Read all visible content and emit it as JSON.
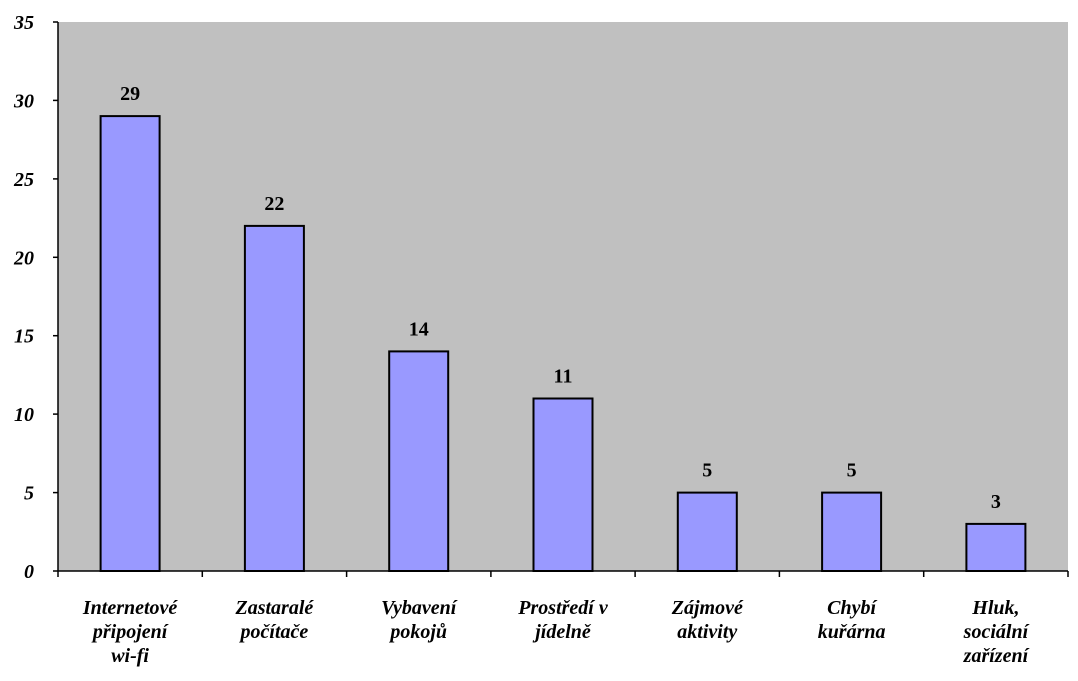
{
  "chart_data": {
    "type": "bar",
    "categories": [
      "Internetové připojení wi-fi",
      "Zastaralé počítače",
      "Vybavení pokojů",
      "Prostředí v jídelně",
      "Zájmové aktivity",
      "Chybí kuřárna",
      "Hluk, sociální zařízení"
    ],
    "category_lines": [
      [
        "Internetové",
        "připojení",
        "wi-fi"
      ],
      [
        "Zastaralé",
        "počítače"
      ],
      [
        "Vybavení",
        "pokojů"
      ],
      [
        "Prostředí v",
        "jídelně"
      ],
      [
        "Zájmové",
        "aktivity"
      ],
      [
        "Chybí",
        "kuřárna"
      ],
      [
        "Hluk,",
        "sociální",
        "zařízení"
      ]
    ],
    "values": [
      29,
      22,
      14,
      11,
      5,
      5,
      3
    ],
    "data_labels": [
      "29",
      "22",
      "14",
      "11",
      "5",
      "5",
      "3"
    ],
    "ylim": [
      0,
      35
    ],
    "yticks": [
      0,
      5,
      10,
      15,
      20,
      25,
      30,
      35
    ],
    "ytick_labels": [
      "0",
      "5",
      "10",
      "15",
      "20",
      "25",
      "30",
      "35"
    ],
    "title": "",
    "xlabel": "",
    "ylabel": "",
    "legend": "none",
    "grid": false,
    "colors": {
      "plot_background": "#c0c0c0",
      "bar_fill": "#9999ff",
      "bar_stroke": "#000000",
      "axis": "#000000",
      "text": "#000000"
    }
  }
}
